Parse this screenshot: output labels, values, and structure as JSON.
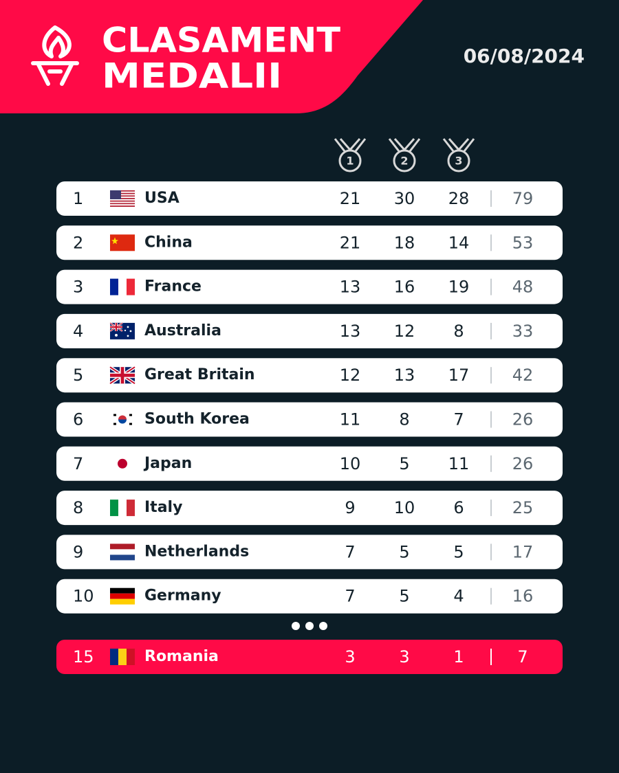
{
  "header": {
    "title_line1": "CLASAMENT",
    "title_line2": "MEDALII",
    "date": "06/08/2024"
  },
  "medal_icons": [
    "1",
    "2",
    "3"
  ],
  "table": {
    "rows": [
      [
        1,
        "USA",
        21,
        30,
        28,
        79
      ],
      [
        2,
        "China",
        21,
        18,
        14,
        53
      ],
      [
        3,
        "France",
        13,
        16,
        19,
        48
      ],
      [
        4,
        "Australia",
        13,
        12,
        8,
        33
      ],
      [
        5,
        "Great Britain",
        12,
        13,
        17,
        42
      ],
      [
        6,
        "South Korea",
        11,
        8,
        7,
        26
      ],
      [
        7,
        "Japan",
        10,
        5,
        11,
        26
      ],
      [
        8,
        "Italy",
        9,
        10,
        6,
        25
      ],
      [
        9,
        "Netherlands",
        7,
        5,
        5,
        17
      ],
      [
        10,
        "Germany",
        7,
        5,
        4,
        16
      ]
    ],
    "highlight": [
      15,
      "Romania",
      3,
      3,
      1,
      7
    ]
  }
}
